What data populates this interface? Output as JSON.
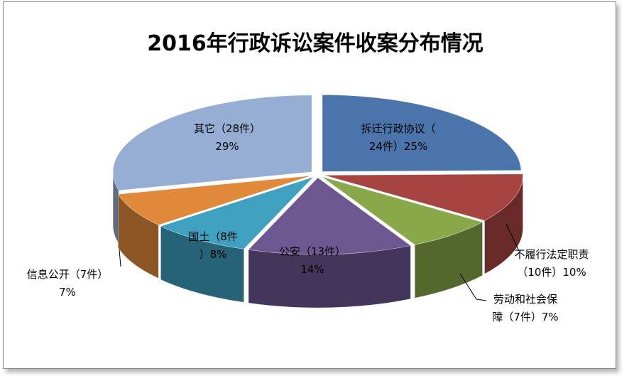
{
  "chart_data": {
    "type": "pie",
    "style": "3d-exploded",
    "title": "2016年行政诉讼案件收案分布情况",
    "slices": [
      {
        "label_lines": [
          "拆迁行政协议（",
          "24件）25%"
        ],
        "value": 24,
        "percent": 25,
        "color": "#4a74ab"
      },
      {
        "label_lines": [
          "不履行法定职责",
          "（10件）10%"
        ],
        "value": 10,
        "percent": 10,
        "color": "#a64442"
      },
      {
        "label_lines": [
          "劳动和社会保",
          "障（7件）7%"
        ],
        "value": 7,
        "percent": 7,
        "color": "#88a84a"
      },
      {
        "label_lines": [
          "公安（13件）",
          "14%"
        ],
        "value": 13,
        "percent": 14,
        "color": "#6c5791"
      },
      {
        "label_lines": [
          "国土（8件",
          "）8%"
        ],
        "value": 8,
        "percent": 8,
        "color": "#3fa0bf"
      },
      {
        "label_lines": [
          "信息公开（7件）",
          "7%"
        ],
        "value": 7,
        "percent": 7,
        "color": "#e0893b"
      },
      {
        "label_lines": [
          "其它（28件）",
          "29%"
        ],
        "value": 28,
        "percent": 29,
        "color": "#97aed4"
      }
    ],
    "legend": "none"
  }
}
